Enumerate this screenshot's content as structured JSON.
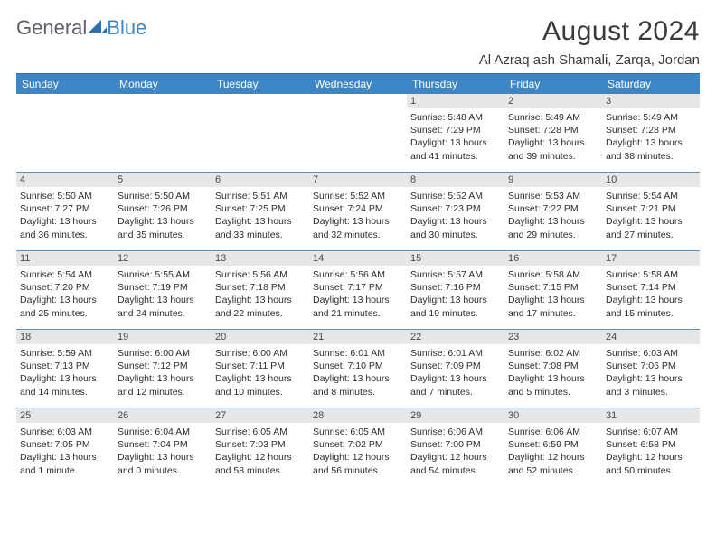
{
  "brand": {
    "part1": "General",
    "part2": "Blue"
  },
  "title": "August 2024",
  "location": "Al Azraq ash Shamali, Zarqa, Jordan",
  "weekdays": [
    "Sunday",
    "Monday",
    "Tuesday",
    "Wednesday",
    "Thursday",
    "Friday",
    "Saturday"
  ],
  "colors": {
    "header_bg": "#3d86c6",
    "header_text": "#ffffff",
    "daynum_bg": "#e5e7e9",
    "divider": "#5f8fbd",
    "logo_gray": "#5a5f66",
    "logo_blue": "#3d86c6"
  },
  "typography": {
    "title_fontsize": 30,
    "location_fontsize": 15,
    "weekday_fontsize": 12,
    "cell_fontsize": 10.5
  },
  "weeks": [
    [
      {
        "n": "",
        "lines": []
      },
      {
        "n": "",
        "lines": []
      },
      {
        "n": "",
        "lines": []
      },
      {
        "n": "",
        "lines": []
      },
      {
        "n": "1",
        "lines": [
          "Sunrise: 5:48 AM",
          "Sunset: 7:29 PM",
          "Daylight: 13 hours and 41 minutes."
        ]
      },
      {
        "n": "2",
        "lines": [
          "Sunrise: 5:49 AM",
          "Sunset: 7:28 PM",
          "Daylight: 13 hours and 39 minutes."
        ]
      },
      {
        "n": "3",
        "lines": [
          "Sunrise: 5:49 AM",
          "Sunset: 7:28 PM",
          "Daylight: 13 hours and 38 minutes."
        ]
      }
    ],
    [
      {
        "n": "4",
        "lines": [
          "Sunrise: 5:50 AM",
          "Sunset: 7:27 PM",
          "Daylight: 13 hours and 36 minutes."
        ]
      },
      {
        "n": "5",
        "lines": [
          "Sunrise: 5:50 AM",
          "Sunset: 7:26 PM",
          "Daylight: 13 hours and 35 minutes."
        ]
      },
      {
        "n": "6",
        "lines": [
          "Sunrise: 5:51 AM",
          "Sunset: 7:25 PM",
          "Daylight: 13 hours and 33 minutes."
        ]
      },
      {
        "n": "7",
        "lines": [
          "Sunrise: 5:52 AM",
          "Sunset: 7:24 PM",
          "Daylight: 13 hours and 32 minutes."
        ]
      },
      {
        "n": "8",
        "lines": [
          "Sunrise: 5:52 AM",
          "Sunset: 7:23 PM",
          "Daylight: 13 hours and 30 minutes."
        ]
      },
      {
        "n": "9",
        "lines": [
          "Sunrise: 5:53 AM",
          "Sunset: 7:22 PM",
          "Daylight: 13 hours and 29 minutes."
        ]
      },
      {
        "n": "10",
        "lines": [
          "Sunrise: 5:54 AM",
          "Sunset: 7:21 PM",
          "Daylight: 13 hours and 27 minutes."
        ]
      }
    ],
    [
      {
        "n": "11",
        "lines": [
          "Sunrise: 5:54 AM",
          "Sunset: 7:20 PM",
          "Daylight: 13 hours and 25 minutes."
        ]
      },
      {
        "n": "12",
        "lines": [
          "Sunrise: 5:55 AM",
          "Sunset: 7:19 PM",
          "Daylight: 13 hours and 24 minutes."
        ]
      },
      {
        "n": "13",
        "lines": [
          "Sunrise: 5:56 AM",
          "Sunset: 7:18 PM",
          "Daylight: 13 hours and 22 minutes."
        ]
      },
      {
        "n": "14",
        "lines": [
          "Sunrise: 5:56 AM",
          "Sunset: 7:17 PM",
          "Daylight: 13 hours and 21 minutes."
        ]
      },
      {
        "n": "15",
        "lines": [
          "Sunrise: 5:57 AM",
          "Sunset: 7:16 PM",
          "Daylight: 13 hours and 19 minutes."
        ]
      },
      {
        "n": "16",
        "lines": [
          "Sunrise: 5:58 AM",
          "Sunset: 7:15 PM",
          "Daylight: 13 hours and 17 minutes."
        ]
      },
      {
        "n": "17",
        "lines": [
          "Sunrise: 5:58 AM",
          "Sunset: 7:14 PM",
          "Daylight: 13 hours and 15 minutes."
        ]
      }
    ],
    [
      {
        "n": "18",
        "lines": [
          "Sunrise: 5:59 AM",
          "Sunset: 7:13 PM",
          "Daylight: 13 hours and 14 minutes."
        ]
      },
      {
        "n": "19",
        "lines": [
          "Sunrise: 6:00 AM",
          "Sunset: 7:12 PM",
          "Daylight: 13 hours and 12 minutes."
        ]
      },
      {
        "n": "20",
        "lines": [
          "Sunrise: 6:00 AM",
          "Sunset: 7:11 PM",
          "Daylight: 13 hours and 10 minutes."
        ]
      },
      {
        "n": "21",
        "lines": [
          "Sunrise: 6:01 AM",
          "Sunset: 7:10 PM",
          "Daylight: 13 hours and 8 minutes."
        ]
      },
      {
        "n": "22",
        "lines": [
          "Sunrise: 6:01 AM",
          "Sunset: 7:09 PM",
          "Daylight: 13 hours and 7 minutes."
        ]
      },
      {
        "n": "23",
        "lines": [
          "Sunrise: 6:02 AM",
          "Sunset: 7:08 PM",
          "Daylight: 13 hours and 5 minutes."
        ]
      },
      {
        "n": "24",
        "lines": [
          "Sunrise: 6:03 AM",
          "Sunset: 7:06 PM",
          "Daylight: 13 hours and 3 minutes."
        ]
      }
    ],
    [
      {
        "n": "25",
        "lines": [
          "Sunrise: 6:03 AM",
          "Sunset: 7:05 PM",
          "Daylight: 13 hours and 1 minute."
        ]
      },
      {
        "n": "26",
        "lines": [
          "Sunrise: 6:04 AM",
          "Sunset: 7:04 PM",
          "Daylight: 13 hours and 0 minutes."
        ]
      },
      {
        "n": "27",
        "lines": [
          "Sunrise: 6:05 AM",
          "Sunset: 7:03 PM",
          "Daylight: 12 hours and 58 minutes."
        ]
      },
      {
        "n": "28",
        "lines": [
          "Sunrise: 6:05 AM",
          "Sunset: 7:02 PM",
          "Daylight: 12 hours and 56 minutes."
        ]
      },
      {
        "n": "29",
        "lines": [
          "Sunrise: 6:06 AM",
          "Sunset: 7:00 PM",
          "Daylight: 12 hours and 54 minutes."
        ]
      },
      {
        "n": "30",
        "lines": [
          "Sunrise: 6:06 AM",
          "Sunset: 6:59 PM",
          "Daylight: 12 hours and 52 minutes."
        ]
      },
      {
        "n": "31",
        "lines": [
          "Sunrise: 6:07 AM",
          "Sunset: 6:58 PM",
          "Daylight: 12 hours and 50 minutes."
        ]
      }
    ]
  ]
}
